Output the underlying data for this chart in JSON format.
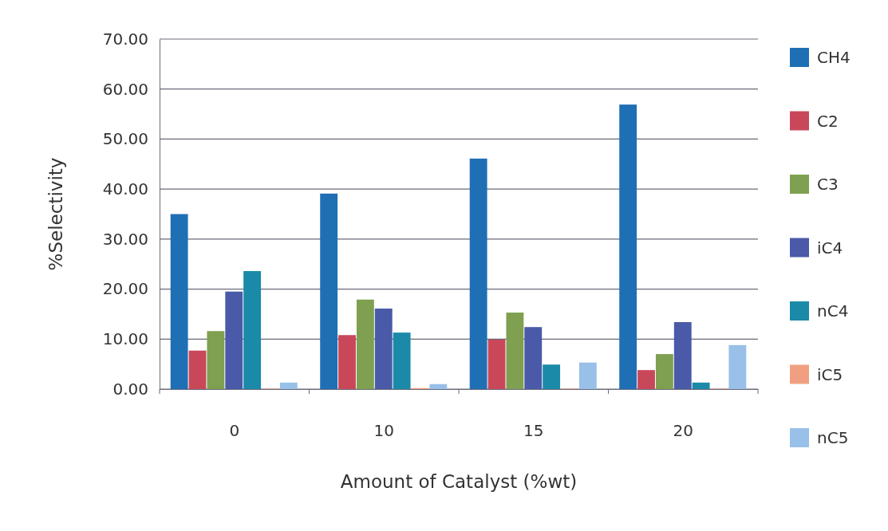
{
  "chart_data": {
    "type": "bar",
    "xlabel": "Amount of Catalyst (%wt)",
    "ylabel": "%Selectivity",
    "categories": [
      "0",
      "10",
      "15",
      "20"
    ],
    "series": [
      {
        "name": "CH4",
        "color": "#1f6fb5",
        "values": [
          35.0,
          39.1,
          46.1,
          56.9
        ]
      },
      {
        "name": "C2",
        "color": "#c8485a",
        "values": [
          7.7,
          10.8,
          9.9,
          3.8
        ]
      },
      {
        "name": "C3",
        "color": "#7fa050",
        "values": [
          11.6,
          17.9,
          15.3,
          7.0
        ]
      },
      {
        "name": "iC4",
        "color": "#4a5aa8",
        "values": [
          19.5,
          16.1,
          12.4,
          13.4
        ]
      },
      {
        "name": "nC4",
        "color": "#1a8aa8",
        "values": [
          23.6,
          11.3,
          4.9,
          1.3
        ]
      },
      {
        "name": "iC5",
        "color": "#f0a080",
        "values": [
          0.1,
          0.2,
          0.1,
          0.1
        ]
      },
      {
        "name": "nC5",
        "color": "#98c0e8",
        "values": [
          1.3,
          1.0,
          5.3,
          8.8
        ]
      }
    ],
    "ylim": [
      0,
      70
    ],
    "yticks": [
      {
        "value": 0,
        "label": "0.00"
      },
      {
        "value": 10,
        "label": "10.00"
      },
      {
        "value": 20,
        "label": "20.00"
      },
      {
        "value": 30,
        "label": "30.00"
      },
      {
        "value": 40,
        "label": "40.00"
      },
      {
        "value": 50,
        "label": "50.00"
      },
      {
        "value": 60,
        "label": "60.00"
      },
      {
        "value": 70,
        "label": "70.00"
      }
    ],
    "grid": "y",
    "legend": "right"
  }
}
